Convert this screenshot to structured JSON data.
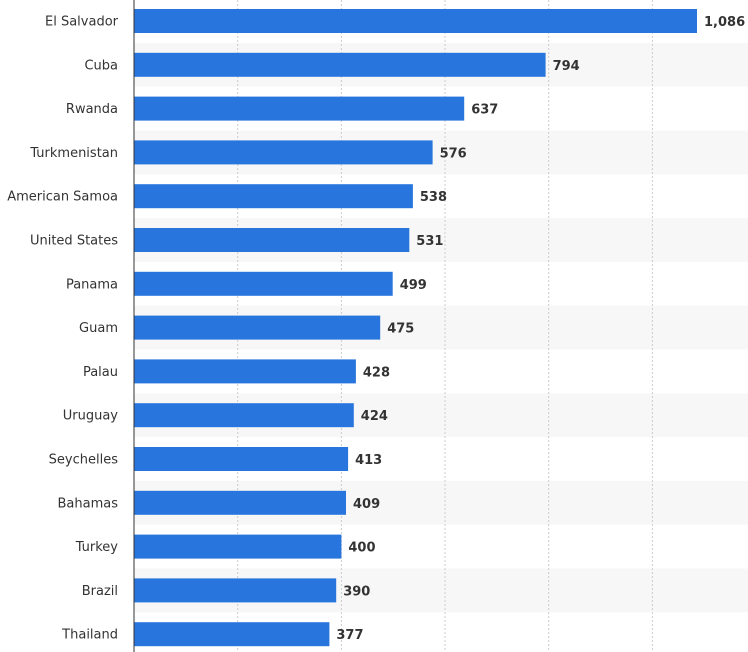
{
  "chart_data": {
    "type": "bar",
    "orientation": "horizontal",
    "title": "",
    "xlabel": "",
    "ylabel": "",
    "xlim": [
      0,
      1200
    ],
    "grid": true,
    "categories": [
      "El Salvador",
      "Cuba",
      "Rwanda",
      "Turkmenistan",
      "American Samoa",
      "United States",
      "Panama",
      "Guam",
      "Palau",
      "Uruguay",
      "Seychelles",
      "Bahamas",
      "Turkey",
      "Brazil",
      "Thailand"
    ],
    "values": [
      1086,
      794,
      637,
      576,
      538,
      531,
      499,
      475,
      428,
      424,
      413,
      409,
      400,
      390,
      377
    ],
    "value_labels": [
      "1,086",
      "794",
      "637",
      "576",
      "538",
      "531",
      "499",
      "475",
      "428",
      "424",
      "413",
      "409",
      "400",
      "390",
      "377"
    ],
    "colors": {
      "bar": "#2876dd",
      "band": "#f7f7f7",
      "grid": "#cccccc",
      "axis": "#333333"
    }
  }
}
